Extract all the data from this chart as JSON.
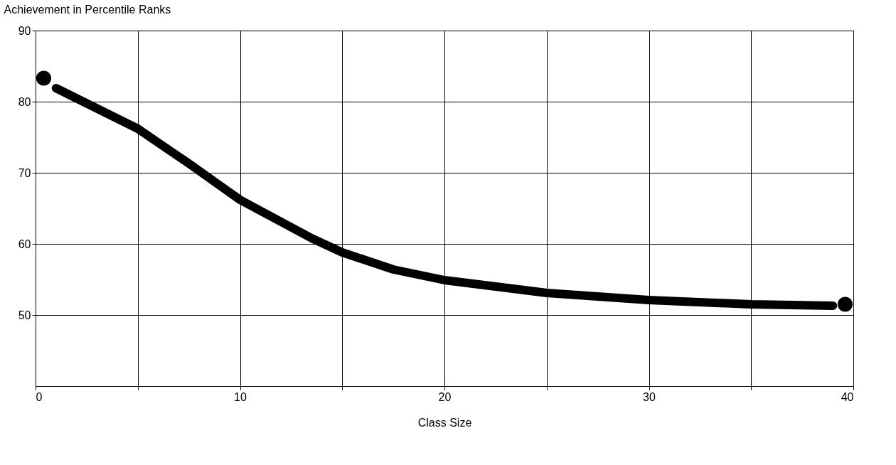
{
  "chart_data": {
    "type": "line",
    "xlabel": "Class Size",
    "ylabel": "Achievement in Percentile Ranks",
    "xlim": [
      0,
      40
    ],
    "xticks": [
      0,
      {
        "value": 5,
        "label": null
      },
      10,
      {
        "value": 15,
        "label": null
      },
      20,
      {
        "value": 25,
        "label": null
      },
      30,
      {
        "value": 35,
        "label": null
      },
      40
    ],
    "ylim": [
      40,
      90
    ],
    "yticks": [
      50,
      60,
      70,
      80,
      90
    ],
    "grid": true,
    "series": [
      {
        "color": "#000000",
        "marker": "none",
        "x": [
          1,
          5,
          7.5,
          10,
          13.5,
          15,
          17.5,
          20,
          25,
          30,
          35,
          39
        ],
        "values": [
          81.9,
          76.2,
          71.3,
          66.2,
          60.8,
          58.8,
          56.4,
          54.9,
          53.1,
          52.1,
          51.5,
          51.3
        ]
      },
      {
        "type": "scatter",
        "color": "#000000",
        "marker": "circle",
        "x": [
          0.4,
          39.6
        ],
        "values": [
          83.3,
          51.5
        ]
      }
    ]
  }
}
